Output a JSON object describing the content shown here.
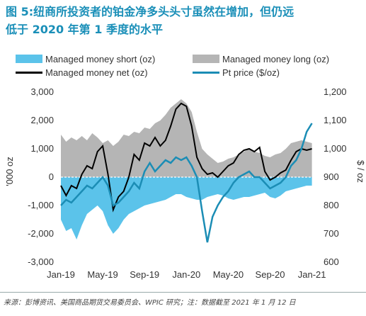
{
  "title": {
    "line1": "图 5:纽商所投资者的铂金净多头头寸虽然在增加，但仍远",
    "line2": "低于 2020 年第 1 季度的水平"
  },
  "source": "来源：彭博资讯、美国商品期货交易委员会、WPIC 研究；注：数据截至 2021 年 1 月 12 日",
  "colors": {
    "short": "#5bc3ea",
    "long": "#b5b5b5",
    "net": "#000000",
    "pt": "#1b8db5",
    "title": "#1a8fb8"
  },
  "chart_data": {
    "type": "area",
    "legend": {
      "short": "Managed money short (oz)",
      "long": "Managed money long (oz)",
      "net": "Managed money net (oz)",
      "pt": "Pt price ($/oz)"
    },
    "ylabel_left": "'000 oz",
    "ylabel_right": "$ / oz",
    "ylim_left": [
      -3000,
      3000
    ],
    "ylim_right": [
      600,
      1200
    ],
    "yticks_left": [
      "3,000",
      "2,000",
      "1,000",
      "0",
      "-1,000",
      "-2,000",
      "-3,000"
    ],
    "yticks_right": [
      "1,200",
      "1,100",
      "1,000",
      "900",
      "800",
      "700",
      "600"
    ],
    "xticks": [
      "Jan-19",
      "May-19",
      "Sep-19",
      "Jan-20",
      "May-20",
      "Sep-20",
      "Jan-21"
    ],
    "xrange": [
      0,
      24.5
    ],
    "series": [
      {
        "name": "Managed money long (oz)",
        "x": [
          0,
          0.5,
          1,
          1.5,
          2,
          2.5,
          3,
          3.5,
          4,
          4.5,
          5,
          5.5,
          6,
          6.5,
          7,
          7.5,
          8,
          8.5,
          9,
          9.5,
          10,
          10.5,
          11,
          11.5,
          12,
          12.5,
          13,
          13.5,
          14,
          14.5,
          15,
          15.5,
          16,
          16.5,
          17,
          17.5,
          18,
          18.5,
          19,
          19.5,
          20,
          20.5,
          21,
          21.5,
          22,
          22.5,
          23,
          23.5,
          24
        ],
        "values": [
          1500,
          1250,
          1400,
          1300,
          1450,
          1300,
          1550,
          1400,
          1200,
          1300,
          1100,
          1250,
          1500,
          1450,
          1600,
          1550,
          1750,
          1700,
          1900,
          2000,
          2200,
          2450,
          2600,
          2750,
          2600,
          2300,
          1600,
          1000,
          800,
          650,
          500,
          550,
          650,
          700,
          800,
          900,
          1000,
          900,
          850,
          750,
          700,
          800,
          850,
          1000,
          1200,
          1250,
          1300,
          1250,
          1200
        ]
      },
      {
        "name": "Managed money short (oz)",
        "x": [
          0,
          0.5,
          1,
          1.5,
          2,
          2.5,
          3,
          3.5,
          4,
          4.5,
          5,
          5.5,
          6,
          6.5,
          7,
          7.5,
          8,
          8.5,
          9,
          9.5,
          10,
          10.5,
          11,
          11.5,
          12,
          12.5,
          13,
          13.5,
          14,
          14.5,
          15,
          15.5,
          16,
          16.5,
          17,
          17.5,
          18,
          18.5,
          19,
          19.5,
          20,
          20.5,
          21,
          21.5,
          22,
          22.5,
          23,
          23.5,
          24
        ],
        "values": [
          -1500,
          -1900,
          -1800,
          -2200,
          -1700,
          -1300,
          -1150,
          -1000,
          -1200,
          -1700,
          -2000,
          -1800,
          -1500,
          -1300,
          -1200,
          -1100,
          -1000,
          -950,
          -900,
          -850,
          -800,
          -700,
          -600,
          -600,
          -700,
          -750,
          -800,
          -800,
          -700,
          -650,
          -600,
          -650,
          -750,
          -800,
          -750,
          -700,
          -700,
          -650,
          -600,
          -550,
          -700,
          -750,
          -650,
          -500,
          -450,
          -400,
          -350,
          -300,
          -300
        ]
      },
      {
        "name": "Managed money net (oz)",
        "x": [
          0,
          0.5,
          1,
          1.5,
          2,
          2.5,
          3,
          3.5,
          4,
          4.5,
          5,
          5.5,
          6,
          6.5,
          7,
          7.5,
          8,
          8.5,
          9,
          9.5,
          10,
          10.5,
          11,
          11.5,
          12,
          12.5,
          13,
          13.5,
          14,
          14.5,
          15,
          15.5,
          16,
          16.5,
          17,
          17.5,
          18,
          18.5,
          19,
          19.5,
          20,
          20.5,
          21,
          21.5,
          22,
          22.5,
          23,
          23.5,
          24
        ],
        "values": [
          -300,
          -650,
          -300,
          -400,
          100,
          400,
          300,
          900,
          1100,
          100,
          -1150,
          -700,
          -500,
          0,
          800,
          600,
          1200,
          1100,
          1400,
          1100,
          1300,
          1800,
          2400,
          2600,
          2500,
          1800,
          700,
          300,
          100,
          150,
          0,
          200,
          400,
          500,
          800,
          950,
          1000,
          900,
          1050,
          200,
          -100,
          0,
          150,
          250,
          600,
          900,
          1000,
          950,
          1000
        ]
      },
      {
        "name": "Pt price ($/oz)",
        "axis": "right",
        "x": [
          0,
          0.5,
          1,
          1.5,
          2,
          2.5,
          3,
          3.5,
          4,
          4.5,
          5,
          5.5,
          6,
          6.5,
          7,
          7.5,
          8,
          8.5,
          9,
          9.5,
          10,
          10.5,
          11,
          11.5,
          12,
          12.5,
          13,
          13.5,
          14,
          14.5,
          15,
          15.5,
          16,
          16.5,
          17,
          17.5,
          18,
          18.5,
          19,
          19.5,
          20,
          20.5,
          21,
          21.5,
          22,
          22.5,
          23,
          23.5,
          24
        ],
        "values": [
          800,
          820,
          810,
          830,
          850,
          870,
          860,
          880,
          900,
          870,
          800,
          810,
          830,
          850,
          880,
          860,
          920,
          950,
          920,
          940,
          960,
          950,
          970,
          960,
          970,
          940,
          900,
          780,
          670,
          760,
          800,
          830,
          850,
          880,
          900,
          910,
          920,
          900,
          900,
          880,
          860,
          870,
          880,
          900,
          940,
          960,
          1000,
          1060,
          1090
        ]
      }
    ]
  }
}
